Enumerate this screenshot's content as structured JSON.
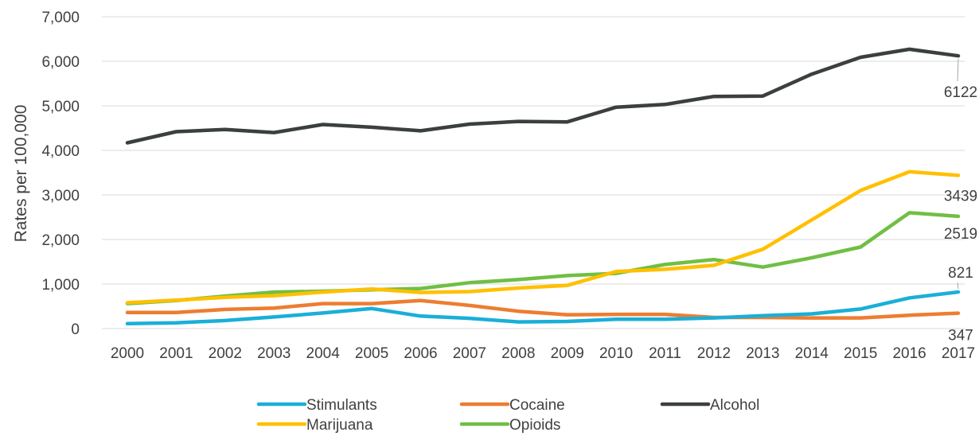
{
  "chart_data": {
    "type": "line",
    "title": "",
    "xlabel": "",
    "ylabel": "Rates per 100,000",
    "ylim": [
      0,
      7000
    ],
    "y_ticks": [
      0,
      1000,
      2000,
      3000,
      4000,
      5000,
      6000,
      7000
    ],
    "y_tick_labels": [
      "0",
      "1,000",
      "2,000",
      "3,000",
      "4,000",
      "5,000",
      "6,000",
      "7,000"
    ],
    "grid": true,
    "legend_position": "bottom",
    "categories": [
      "2000",
      "2001",
      "2002",
      "2003",
      "2004",
      "2005",
      "2006",
      "2007",
      "2008",
      "2009",
      "2010",
      "2011",
      "2012",
      "2013",
      "2014",
      "2015",
      "2016",
      "2017"
    ],
    "series": [
      {
        "name": "Stimulants",
        "color": "#1AAFD8",
        "values": [
          110,
          130,
          180,
          260,
          350,
          450,
          280,
          230,
          150,
          160,
          210,
          210,
          240,
          290,
          330,
          440,
          690,
          821
        ],
        "end_label": "821"
      },
      {
        "name": "Cocaine",
        "color": "#ED7D31",
        "values": [
          360,
          360,
          430,
          460,
          560,
          560,
          630,
          520,
          390,
          310,
          320,
          320,
          250,
          250,
          240,
          240,
          300,
          347
        ],
        "end_label": "347"
      },
      {
        "name": "Alcohol",
        "color": "#3B3F40",
        "values": [
          4170,
          4420,
          4470,
          4400,
          4580,
          4520,
          4440,
          4590,
          4650,
          4640,
          4970,
          5030,
          5210,
          5220,
          5710,
          6090,
          6270,
          6122
        ],
        "end_label": "6122"
      },
      {
        "name": "Marijuana",
        "color": "#FFC000",
        "values": [
          580,
          640,
          700,
          740,
          820,
          890,
          810,
          830,
          910,
          970,
          1280,
          1330,
          1420,
          1780,
          2440,
          3100,
          3520,
          3439
        ],
        "end_label": "3439"
      },
      {
        "name": "Opioids",
        "color": "#70BF44",
        "values": [
          560,
          630,
          730,
          820,
          840,
          870,
          900,
          1030,
          1100,
          1190,
          1240,
          1440,
          1550,
          1380,
          1590,
          1830,
          2600,
          2519
        ],
        "end_label": "2519"
      }
    ]
  }
}
